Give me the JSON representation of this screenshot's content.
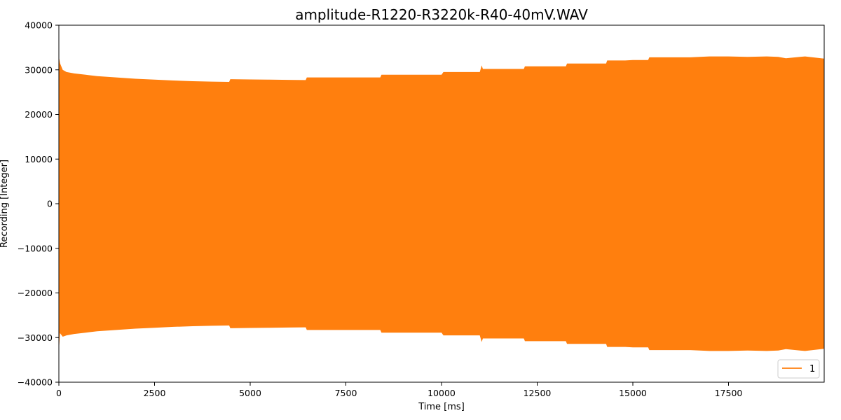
{
  "chart_data": {
    "type": "area",
    "title": "amplitude-R1220-R3220k-R40-40mV.WAV",
    "xlabel": "Time [ms]",
    "ylabel": "Recording [Integer]",
    "xlim": [
      0,
      20000
    ],
    "ylim": [
      -40000,
      40000
    ],
    "xticks": [
      0,
      2500,
      5000,
      7500,
      10000,
      12500,
      15000,
      17500
    ],
    "xtick_labels": [
      "0",
      "2500",
      "5000",
      "7500",
      "10000",
      "12500",
      "15000",
      "17500"
    ],
    "yticks": [
      40000,
      30000,
      20000,
      10000,
      0,
      -10000,
      -20000,
      -30000,
      -40000
    ],
    "ytick_labels": [
      "40000",
      "30000",
      "20000",
      "10000",
      "0",
      "−10000",
      "−20000",
      "−30000",
      "−40000"
    ],
    "grid": false,
    "legend_position": "bottom-right",
    "series": [
      {
        "name": "1",
        "color": "#ff7f0e",
        "envelope": {
          "x": [
            0,
            30,
            100,
            200,
            400,
            700,
            1000,
            1500,
            2000,
            2500,
            3000,
            3500,
            4000,
            4450,
            4480,
            5000,
            5500,
            6000,
            6450,
            6480,
            7000,
            7500,
            8000,
            8400,
            8430,
            9000,
            9500,
            10000,
            10050,
            10500,
            11000,
            11050,
            11080,
            11500,
            12000,
            12150,
            12180,
            12500,
            13000,
            13250,
            13280,
            13500,
            14000,
            14300,
            14330,
            14800,
            15000,
            15400,
            15430,
            16000,
            16500,
            17000,
            17500,
            18000,
            18500,
            18800,
            19000,
            19500,
            20000
          ],
          "upper": [
            33000,
            31500,
            30000,
            29500,
            29200,
            28900,
            28600,
            28300,
            28000,
            27800,
            27600,
            27450,
            27350,
            27300,
            27900,
            27850,
            27800,
            27750,
            27700,
            28300,
            28300,
            28300,
            28300,
            28300,
            28900,
            28900,
            28900,
            28900,
            29500,
            29500,
            29500,
            31000,
            30200,
            30200,
            30200,
            30200,
            30800,
            30800,
            30800,
            30800,
            31400,
            31400,
            31400,
            31400,
            32100,
            32100,
            32200,
            32200,
            32800,
            32800,
            32800,
            33000,
            33000,
            32900,
            33000,
            32900,
            32600,
            33000,
            32500
          ],
          "lower": [
            -33000,
            -29000,
            -29800,
            -29500,
            -29200,
            -28900,
            -28600,
            -28300,
            -28000,
            -27800,
            -27600,
            -27450,
            -27350,
            -27300,
            -27900,
            -27850,
            -27800,
            -27750,
            -27700,
            -28300,
            -28300,
            -28300,
            -28300,
            -28300,
            -28900,
            -28900,
            -28900,
            -28900,
            -29500,
            -29500,
            -29500,
            -31000,
            -30200,
            -30200,
            -30200,
            -30200,
            -30800,
            -30800,
            -30800,
            -30800,
            -31400,
            -31400,
            -31400,
            -31400,
            -32100,
            -32100,
            -32200,
            -32200,
            -32800,
            -32800,
            -32800,
            -33000,
            -33000,
            -32900,
            -33000,
            -32900,
            -32600,
            -33000,
            -32500
          ]
        }
      }
    ]
  }
}
